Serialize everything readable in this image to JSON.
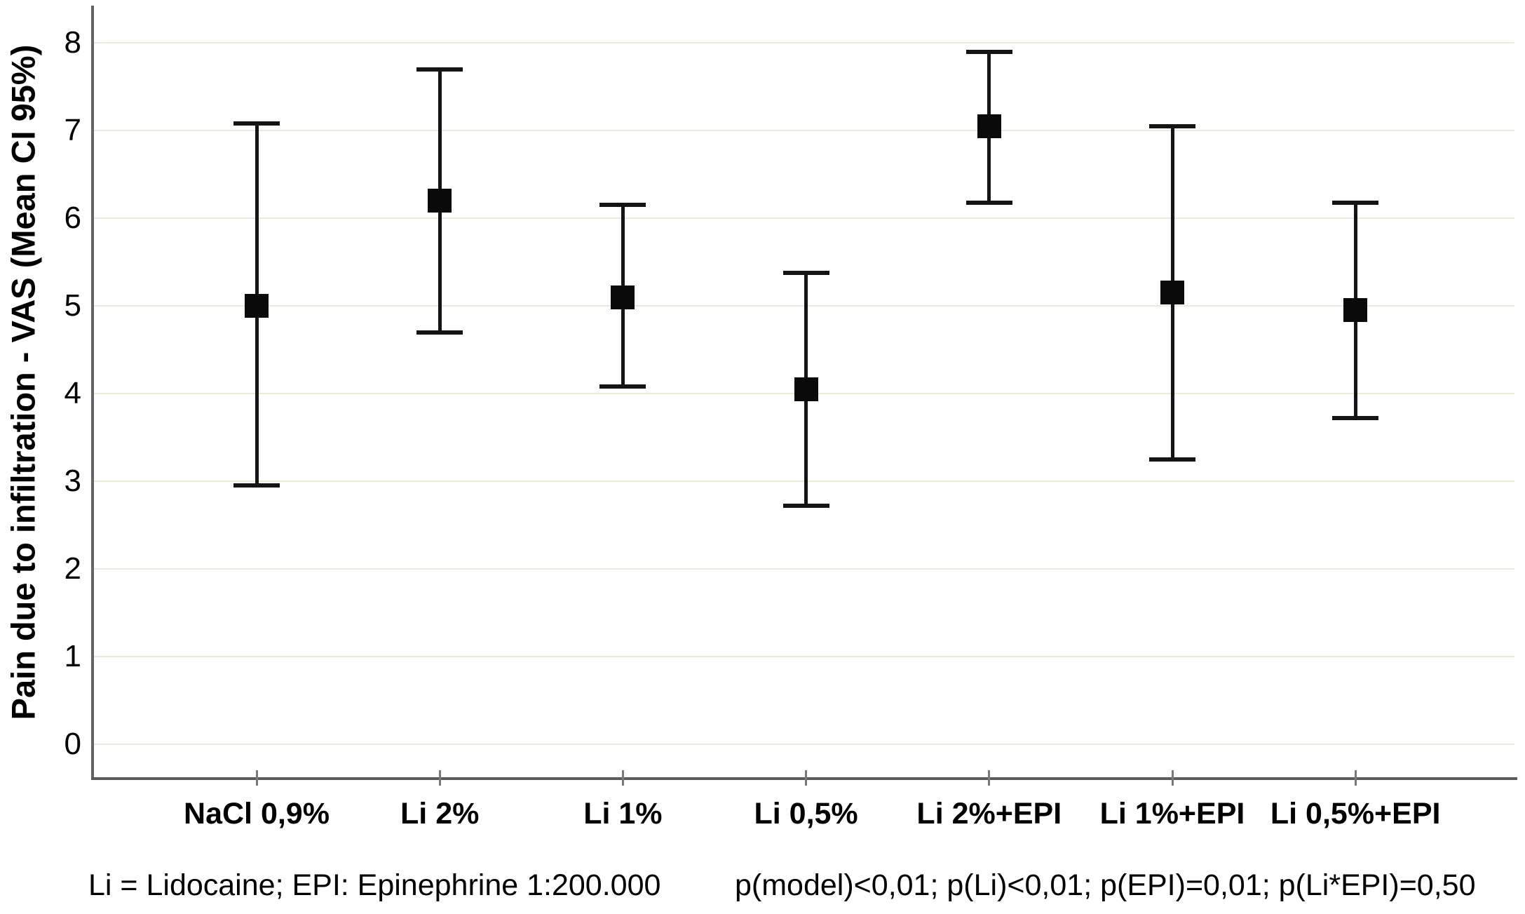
{
  "figure": {
    "y_axis_title": "Pain due to infiltration - VAS (Mean CI 95%)",
    "footnote_left": "Li = Lidocaine; EPI: Epinephrine 1:200.000",
    "footnote_right": "p(model)<0,01; p(Li)<0,01; p(EPI)=0,01; p(Li*EPI)=0,50"
  },
  "chart_data": {
    "type": "scatter",
    "subtype": "mean-with-95ci-errorbars",
    "title": "",
    "xlabel": "",
    "ylabel": "Pain due to infiltration - VAS (Mean CI 95%)",
    "categories": [
      "NaCl 0,9%",
      "Li 2%",
      "Li 1%",
      "Li 0,5%",
      "Li 2%+EPI",
      "Li 1%+EPI",
      "Li 0,5%+EPI"
    ],
    "series": [
      {
        "name": "Mean (95% CI)",
        "means": [
          5.0,
          6.2,
          5.1,
          4.05,
          7.05,
          5.15,
          4.95
        ],
        "ci_low": [
          2.95,
          4.7,
          4.08,
          2.72,
          6.18,
          3.25,
          3.72
        ],
        "ci_high": [
          7.08,
          7.7,
          6.15,
          5.38,
          7.9,
          7.05,
          6.18
        ]
      }
    ],
    "ylim": [
      0,
      8.4
    ],
    "y_ticks": [
      0,
      1,
      2,
      3,
      4,
      5,
      6,
      7,
      8
    ],
    "grid": "horizontal",
    "legend": "none",
    "marker": "filled-square",
    "colors": {
      "marker": "#0a0a0a",
      "error_bar": "#141414",
      "gridline": "#ebead9",
      "axis": "#5d5d5d",
      "text": "#000000"
    }
  }
}
